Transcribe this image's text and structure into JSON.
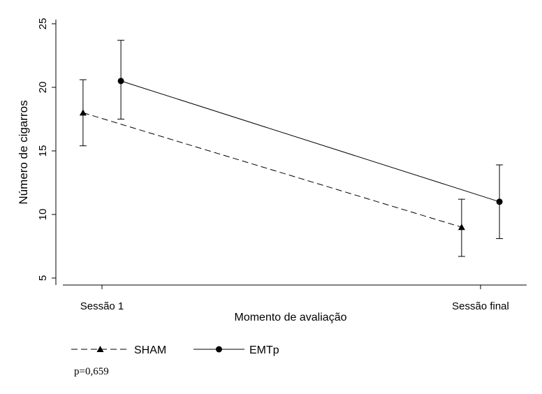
{
  "chart_data": {
    "type": "line",
    "categories": [
      "Sessão 1",
      "Sessão final"
    ],
    "xlabel": "Momento de avaliação",
    "ylabel": "Número de cigarros",
    "yticks": [
      5,
      10,
      15,
      20,
      25
    ],
    "ylim": [
      4.5,
      26
    ],
    "grid": false,
    "legend_position": "bottom-left",
    "series": [
      {
        "name": "SHAM",
        "style": "dashed",
        "marker": "triangle",
        "x_offset": -0.1,
        "points": [
          {
            "category": "Sessão 1",
            "mean": 18.0,
            "lower": 15.4,
            "upper": 20.6
          },
          {
            "category": "Sessão final",
            "mean": 9.0,
            "lower": 6.7,
            "upper": 11.2
          }
        ]
      },
      {
        "name": "EMTp",
        "style": "solid",
        "marker": "circle",
        "x_offset": 0.1,
        "points": [
          {
            "category": "Sessão 1",
            "mean": 20.5,
            "lower": 17.5,
            "upper": 23.7
          },
          {
            "category": "Sessão final",
            "mean": 11.0,
            "lower": 8.1,
            "upper": 13.9
          }
        ]
      }
    ]
  },
  "annotation": "p=0,659",
  "colors": {
    "line": "#000000"
  }
}
